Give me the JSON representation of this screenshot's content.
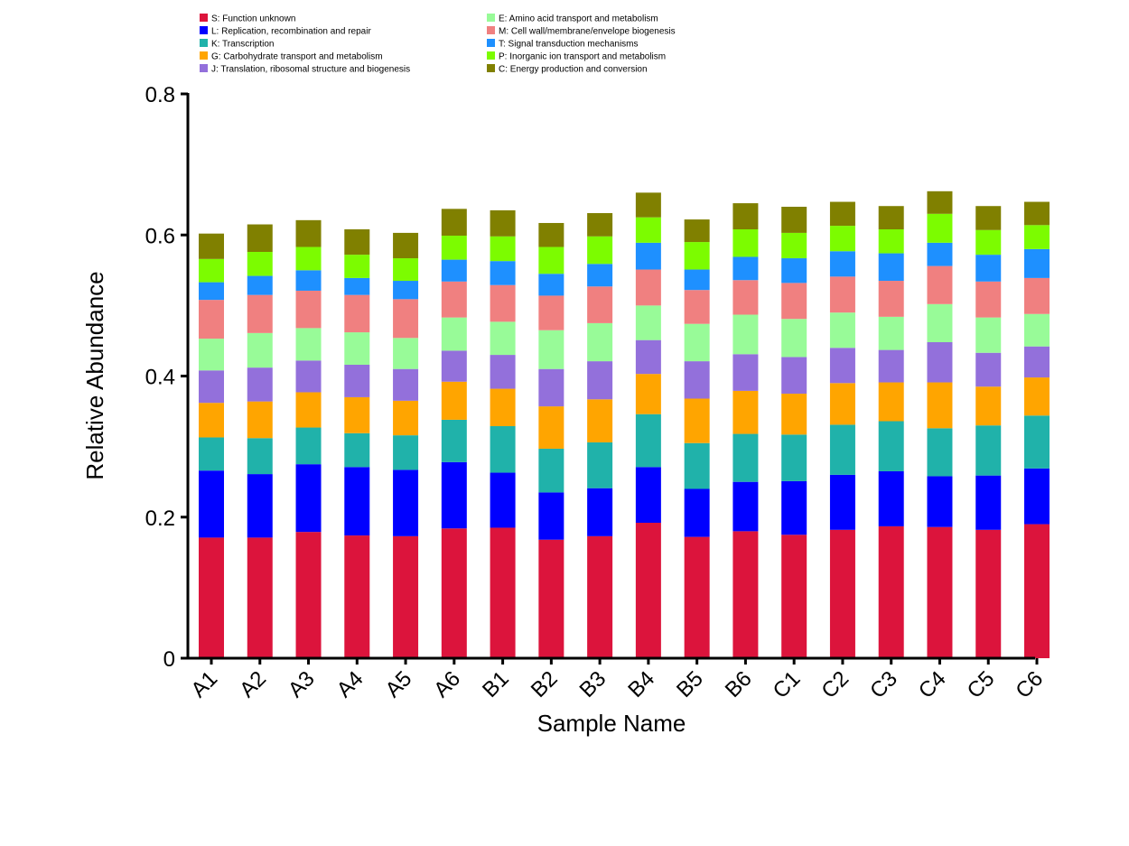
{
  "chart_data": {
    "type": "bar",
    "stacked": true,
    "title": "",
    "xlabel": "Sample Name",
    "ylabel": "Relative Abundance",
    "ylim": [
      0,
      0.8
    ],
    "yticks": [
      0,
      0.2,
      0.4,
      0.6,
      0.8
    ],
    "ytick_labels": [
      "0",
      "0.2",
      "0.4",
      "0.6",
      "0.8"
    ],
    "grid": false,
    "legend_position": "top",
    "categories": [
      "A1",
      "A2",
      "A3",
      "A4",
      "A5",
      "A6",
      "B1",
      "B2",
      "B3",
      "B4",
      "B5",
      "B6",
      "C1",
      "C2",
      "C3",
      "C4",
      "C5",
      "C6"
    ],
    "series": [
      {
        "name": "S: Function unknown",
        "color": "#dc143c",
        "values": [
          0.171,
          0.171,
          0.179,
          0.174,
          0.173,
          0.184,
          0.185,
          0.168,
          0.173,
          0.192,
          0.172,
          0.18,
          0.175,
          0.182,
          0.187,
          0.186,
          0.182,
          0.19
        ]
      },
      {
        "name": "L: Replication, recombination and repair",
        "color": "#0000ff",
        "values": [
          0.095,
          0.09,
          0.096,
          0.097,
          0.094,
          0.094,
          0.078,
          0.067,
          0.068,
          0.079,
          0.068,
          0.07,
          0.076,
          0.078,
          0.078,
          0.072,
          0.077,
          0.079
        ]
      },
      {
        "name": "K: Transcription",
        "color": "#20b2aa",
        "values": [
          0.047,
          0.051,
          0.052,
          0.048,
          0.049,
          0.06,
          0.066,
          0.062,
          0.065,
          0.075,
          0.065,
          0.068,
          0.066,
          0.071,
          0.071,
          0.068,
          0.071,
          0.075
        ]
      },
      {
        "name": "G: Carbohydrate transport and metabolism",
        "color": "#ffa500",
        "values": [
          0.049,
          0.052,
          0.05,
          0.051,
          0.049,
          0.054,
          0.053,
          0.06,
          0.061,
          0.057,
          0.063,
          0.061,
          0.058,
          0.059,
          0.055,
          0.065,
          0.055,
          0.054
        ]
      },
      {
        "name": "J: Translation, ribosomal structure and biogenesis",
        "color": "#9370db",
        "values": [
          0.046,
          0.048,
          0.045,
          0.046,
          0.045,
          0.044,
          0.048,
          0.053,
          0.054,
          0.048,
          0.053,
          0.052,
          0.052,
          0.05,
          0.046,
          0.057,
          0.048,
          0.044
        ]
      },
      {
        "name": "E: Amino acid transport and metabolism",
        "color": "#98fb98",
        "values": [
          0.045,
          0.049,
          0.046,
          0.046,
          0.044,
          0.047,
          0.047,
          0.055,
          0.054,
          0.049,
          0.053,
          0.056,
          0.054,
          0.05,
          0.047,
          0.054,
          0.05,
          0.046
        ]
      },
      {
        "name": "M: Cell wall/membrane/envelope biogenesis",
        "color": "#f08080",
        "values": [
          0.055,
          0.054,
          0.053,
          0.053,
          0.055,
          0.051,
          0.052,
          0.049,
          0.052,
          0.051,
          0.048,
          0.049,
          0.051,
          0.051,
          0.051,
          0.054,
          0.051,
          0.051
        ]
      },
      {
        "name": "T: Signal transduction mechanisms",
        "color": "#1e90ff",
        "values": [
          0.025,
          0.027,
          0.029,
          0.024,
          0.026,
          0.031,
          0.034,
          0.031,
          0.032,
          0.038,
          0.029,
          0.033,
          0.035,
          0.036,
          0.039,
          0.033,
          0.038,
          0.041
        ]
      },
      {
        "name": "P: Inorganic ion transport and metabolism",
        "color": "#7cfc00",
        "values": [
          0.033,
          0.034,
          0.033,
          0.033,
          0.032,
          0.034,
          0.035,
          0.038,
          0.039,
          0.036,
          0.039,
          0.039,
          0.036,
          0.036,
          0.034,
          0.041,
          0.035,
          0.034
        ]
      },
      {
        "name": "C: Energy production and conversion",
        "color": "#808000",
        "values": [
          0.036,
          0.039,
          0.038,
          0.036,
          0.036,
          0.038,
          0.037,
          0.034,
          0.033,
          0.035,
          0.032,
          0.037,
          0.037,
          0.034,
          0.033,
          0.032,
          0.034,
          0.033
        ]
      }
    ]
  }
}
